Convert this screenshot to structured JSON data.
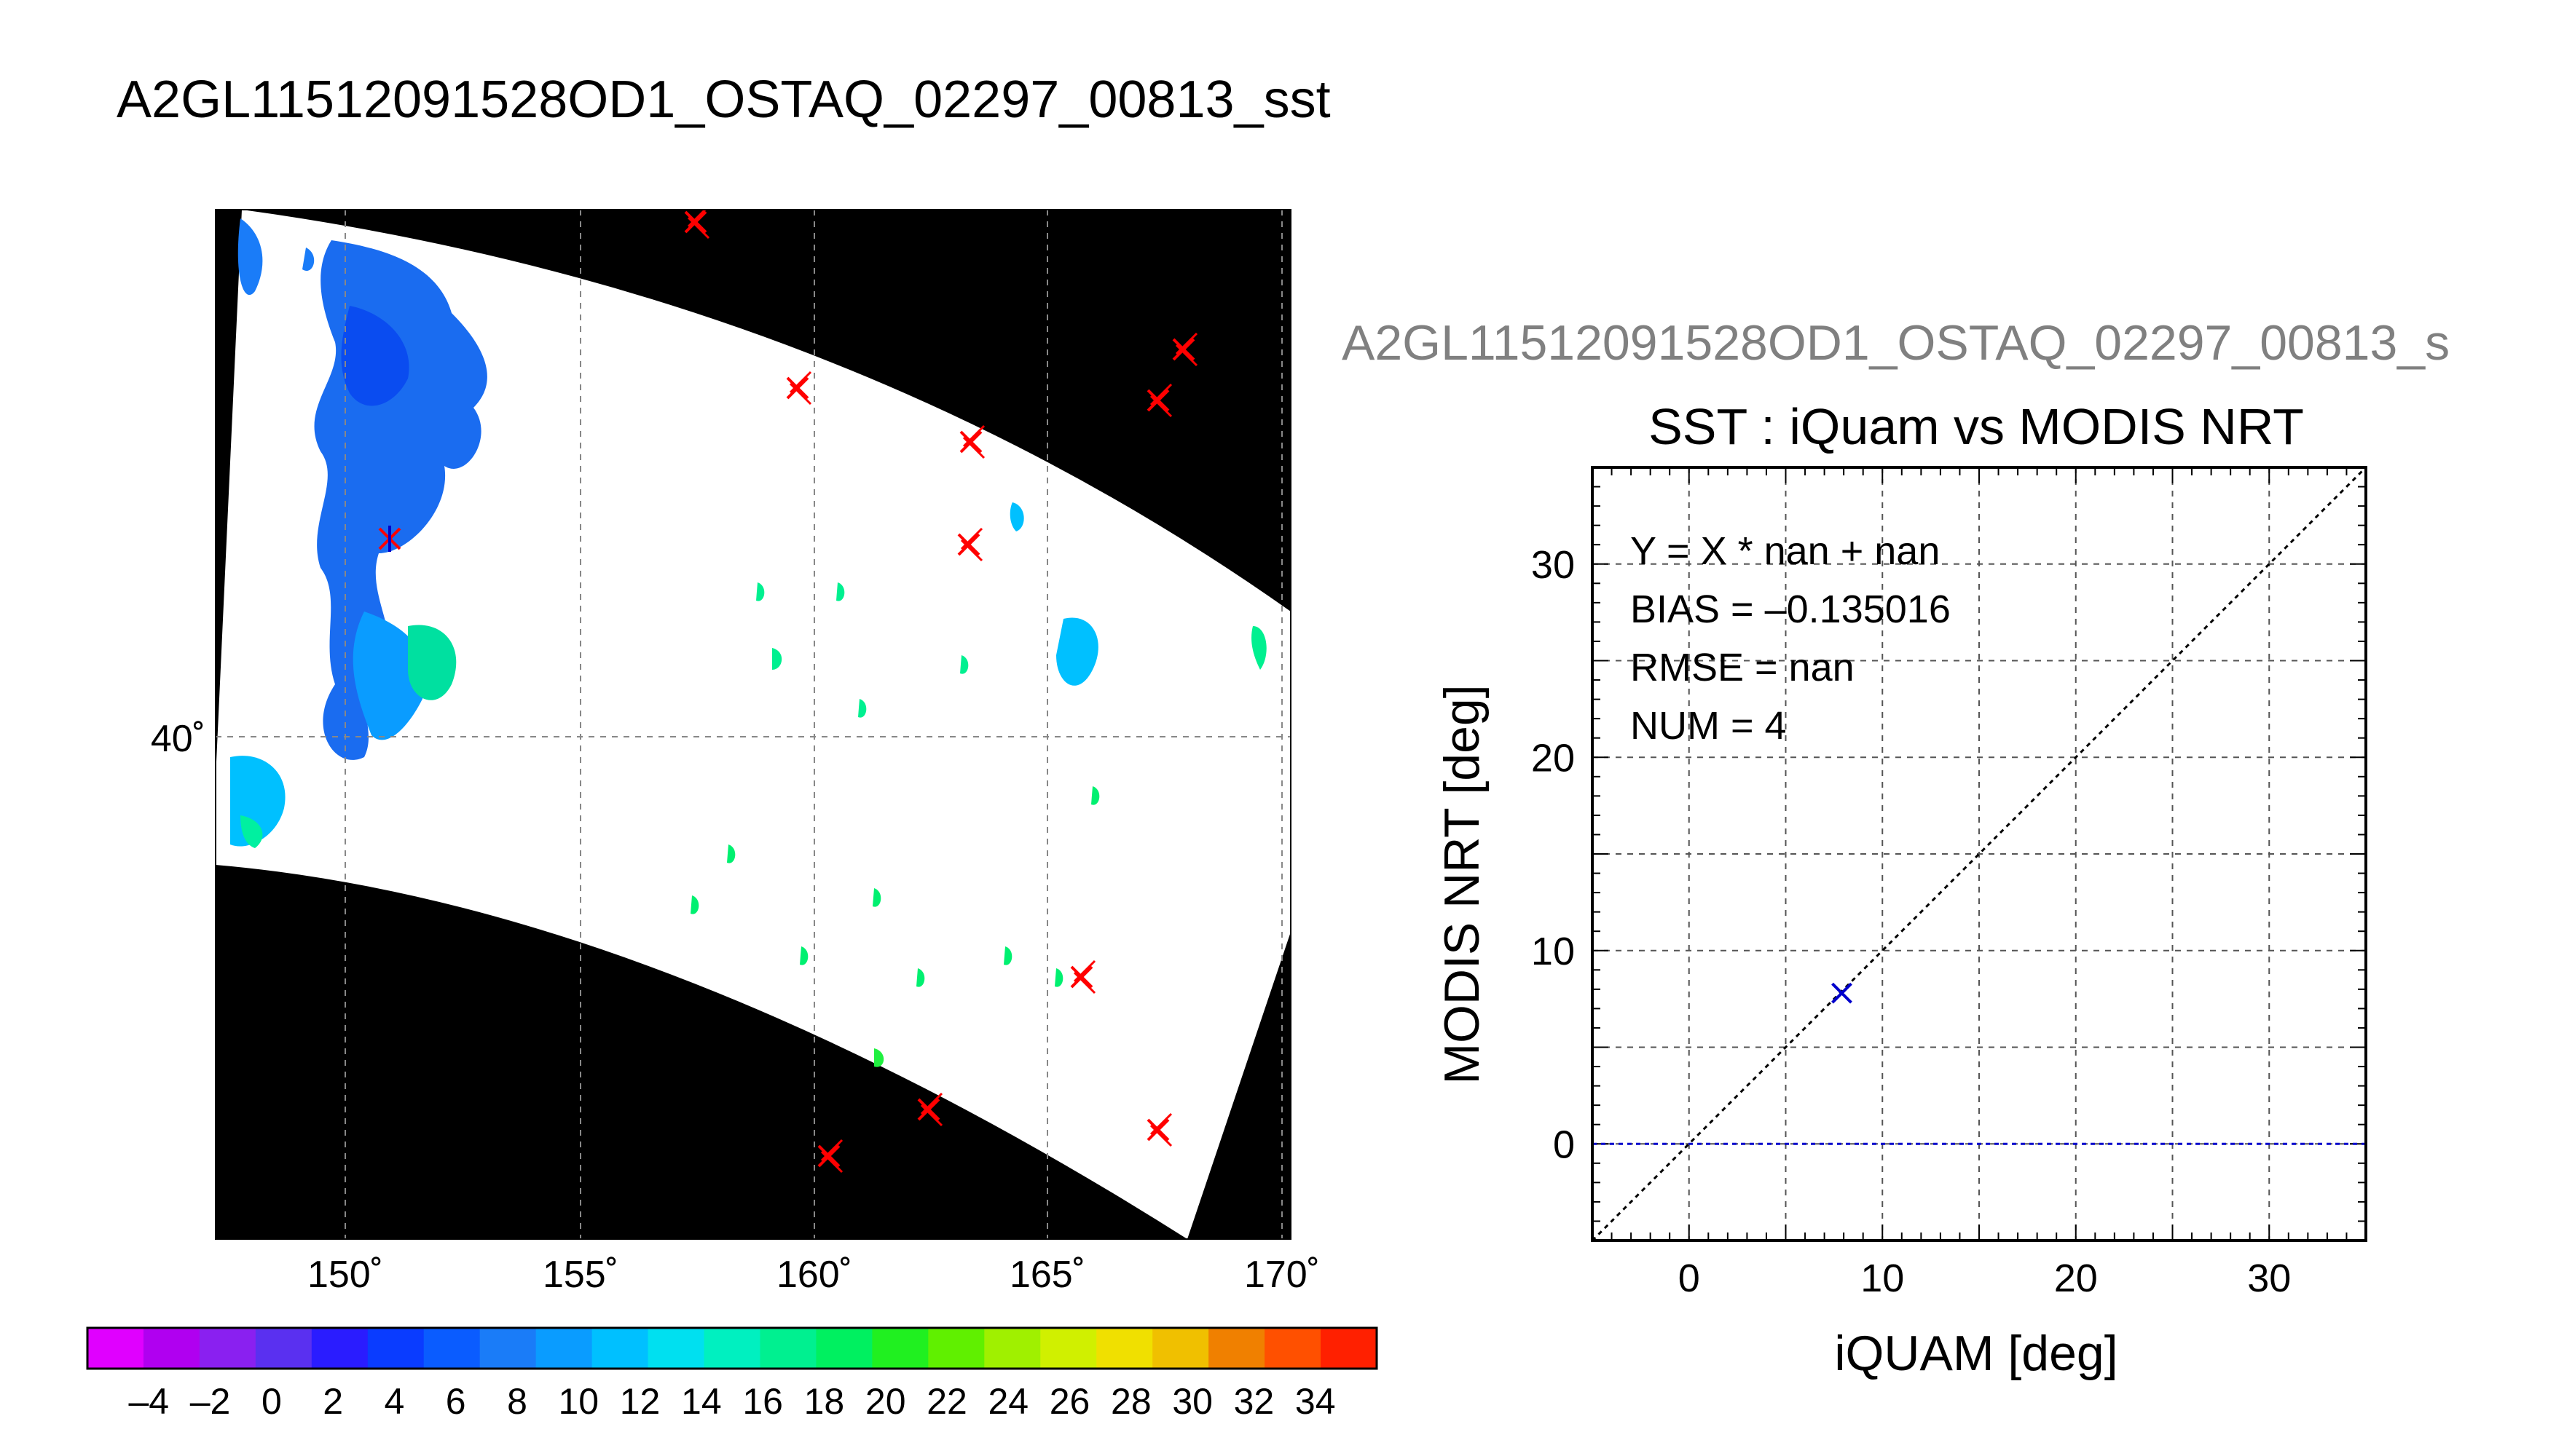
{
  "page_title": "A2GL11512091528OD1_OSTAQ_02297_00813_sst",
  "map": {
    "lon_ticks": [
      "150˚",
      "155˚",
      "160˚",
      "165˚",
      "170˚"
    ],
    "lat_tick": "40˚",
    "colors": {
      "land_mask": "#000000",
      "scene_bg": "#ffffff",
      "grid": "#888888",
      "marker": "#ff0000",
      "marker_matched": "#0000cc"
    }
  },
  "colorbar": {
    "tick_labels": [
      "–4",
      "–2",
      "0",
      "2",
      "4",
      "6",
      "8",
      "10",
      "12",
      "14",
      "16",
      "18",
      "20",
      "22",
      "24",
      "26",
      "28",
      "30",
      "32",
      "34"
    ],
    "colors": [
      "#e000ff",
      "#b000f0",
      "#8a20f0",
      "#5a30f0",
      "#2a1cff",
      "#0a3cff",
      "#0a5cff",
      "#1a7cf8",
      "#0a9cff",
      "#00c0ff",
      "#00e0f0",
      "#00f0c0",
      "#00f090",
      "#00f060",
      "#20f020",
      "#60f000",
      "#a0f000",
      "#d0f000",
      "#f0e000",
      "#f0c000",
      "#f08000",
      "#ff5000",
      "#ff2000"
    ]
  },
  "scatter_header": "A2GL11512091528OD1_OSTAQ_02297_00813_s",
  "chart_data": {
    "type": "scatter",
    "title": "SST : iQuam vs MODIS NRT",
    "xlabel": "iQUAM [deg]",
    "ylabel": "MODIS NRT [deg]",
    "xlim": [
      -5,
      35
    ],
    "ylim": [
      -5,
      35
    ],
    "x_ticks": [
      0,
      10,
      20,
      30
    ],
    "y_ticks": [
      0,
      10,
      20,
      30
    ],
    "grid": true,
    "annotations": [
      "Y = X * nan + nan",
      "BIAS = –0.135016",
      "RMSE = nan",
      "NUM = 4"
    ],
    "series": [
      {
        "points": [
          {
            "x": 7.9,
            "y": 7.8
          }
        ],
        "marker": "x",
        "color": "#0000cc"
      }
    ],
    "reference_lines": [
      {
        "kind": "identity",
        "color": "#000000",
        "dashed": true
      },
      {
        "kind": "horizontal",
        "y": 0,
        "color": "#0000cc",
        "dashed": true
      }
    ]
  }
}
